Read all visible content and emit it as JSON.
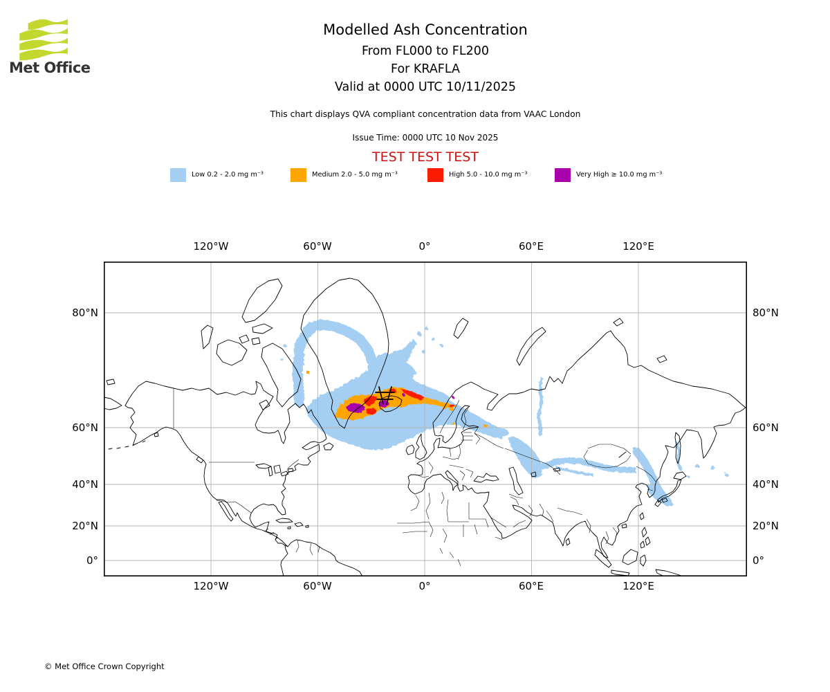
{
  "branding": {
    "logo_label": "Met Office"
  },
  "header": {
    "title": "Modelled Ash Concentration",
    "flight_levels": "From FL000 to FL200",
    "volcano_line": "For KRAFLA",
    "valid_time": "Valid at 0000 UTC 10/11/2025",
    "description": "This chart displays QVA compliant concentration data from VAAC London",
    "issue_time": "Issue Time: 0000 UTC 10 Nov 2025",
    "test_banner": "TEST TEST TEST"
  },
  "legend": {
    "items": [
      {
        "id": "low",
        "label": "Low 0.2 - 2.0 mg m⁻³",
        "color": "#a5cff2"
      },
      {
        "id": "medium",
        "label": "Medium 2.0 - 5.0 mg m⁻³",
        "color": "#ffa500"
      },
      {
        "id": "high",
        "label": "High 5.0 - 10.0 mg m⁻³",
        "color": "#fb1d00"
      },
      {
        "id": "very-high",
        "label": "Very High ≥ 10.0 mg m⁻³",
        "color": "#a800aa"
      }
    ]
  },
  "map": {
    "grid_color": "#b3b3b3",
    "x_ticks": [
      "120°W",
      "60°W",
      "0°",
      "60°E",
      "120°E"
    ],
    "y_ticks": [
      "80°N",
      "60°N",
      "40°N",
      "20°N",
      "0°"
    ],
    "volcano_name": "KRAFLA"
  },
  "footer": {
    "copyright": "© Met Office Crown Copyright"
  },
  "chart_data": {
    "type": "map-concentration",
    "product": "Modelled Ash Concentration",
    "layer": "FL000 to FL200",
    "volcano": "KRAFLA",
    "valid_at": "0000 UTC 10/11/2025",
    "issued_at": "0000 UTC 10 Nov 2025",
    "source": "VAAC London",
    "status": "TEST",
    "projection": "Mercator, 120W/60W/0/60E/120E x 80N/60N/40N/20N/0",
    "categories": [
      {
        "name": "Low",
        "range_mg_m3": [
          0.2,
          2.0
        ],
        "color": "#a5cff2"
      },
      {
        "name": "Medium",
        "range_mg_m3": [
          2.0,
          5.0
        ],
        "color": "#ffa500"
      },
      {
        "name": "High",
        "range_mg_m3": [
          5.0,
          10.0
        ],
        "color": "#fb1d00"
      },
      {
        "name": "Very High",
        "range_mg_m3": [
          10.0,
          null
        ],
        "color": "#a800aa"
      }
    ],
    "plume_summary": "Main multi-level plume over Iceland/N-Atlantic (Low to Very High) around 60-66N 45W-5E; Low band wrapping Greenland; long Low concentration streaks across Scandinavia, Russia, Kazakhstan, Mongolia, Korea and Japan"
  }
}
